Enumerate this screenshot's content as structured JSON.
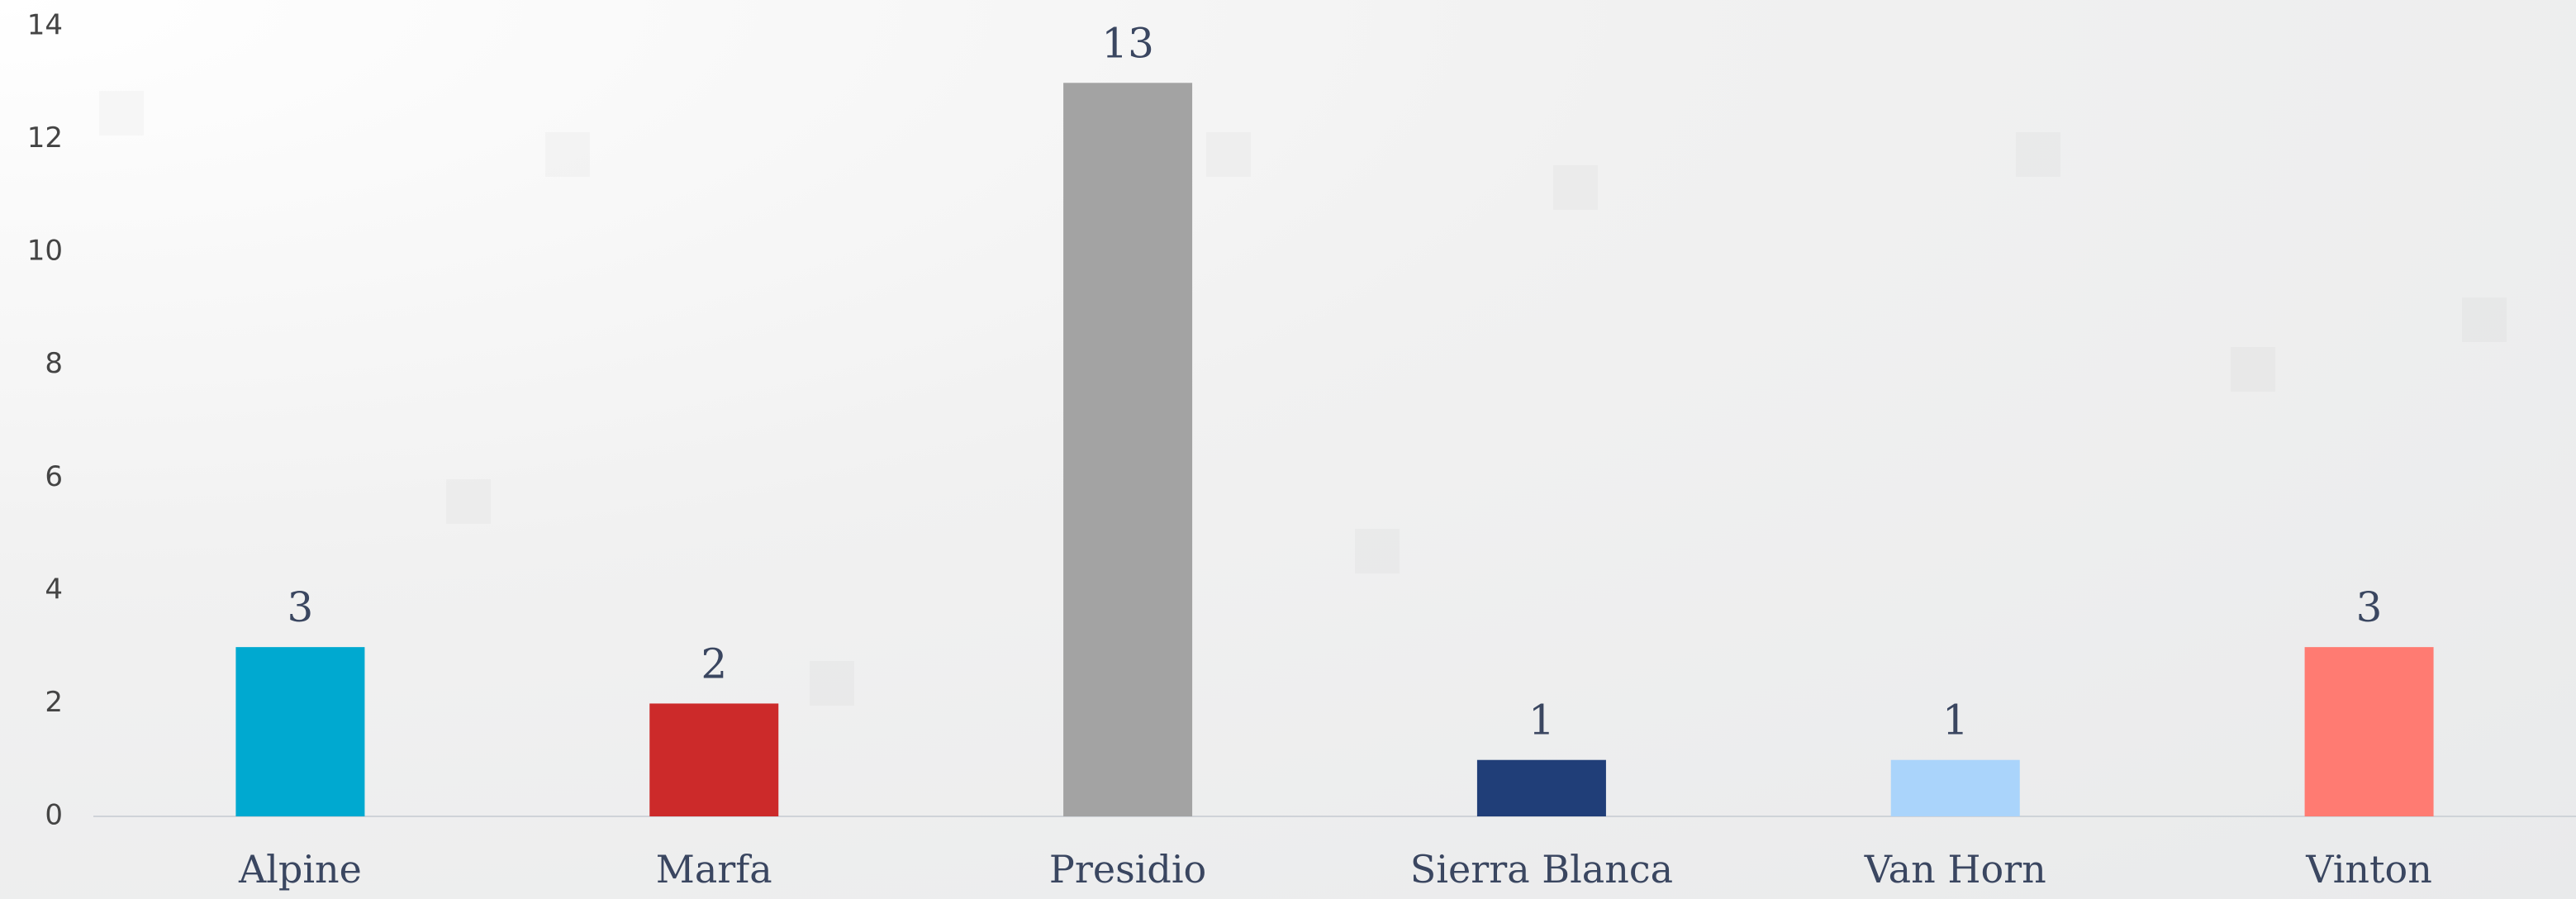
{
  "chart_data": {
    "type": "bar",
    "categories": [
      "Alpine",
      "Marfa",
      "Presidio",
      "Sierra Blanca",
      "Van Horn",
      "Vinton"
    ],
    "values": [
      3,
      2,
      13,
      1,
      1,
      3
    ],
    "colors": [
      "#00a9d0",
      "#cc2a2a",
      "#a3a3a3",
      "#203e78",
      "#aad4fb",
      "#ff7b72"
    ],
    "ylim": [
      0,
      14
    ],
    "yticks": [
      0,
      2,
      4,
      6,
      8,
      10,
      12,
      14
    ],
    "grid": false
  }
}
